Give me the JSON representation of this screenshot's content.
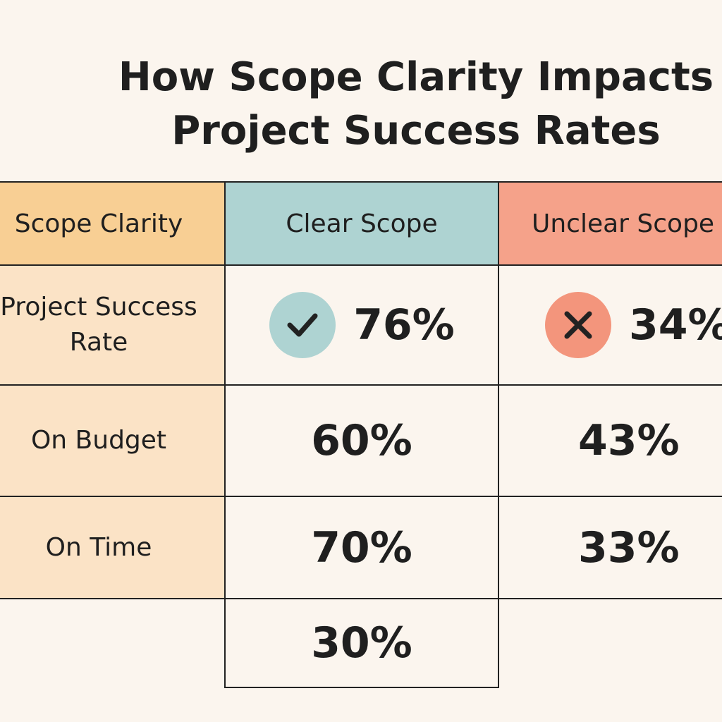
{
  "title": "How Scope Clarity Impacts Project Success Rates",
  "table": {
    "header": [
      "Scope Clarity",
      "Clear Scope",
      "Unclear Scope"
    ],
    "rows": [
      [
        "Project Success Rate",
        "76%",
        "34%"
      ],
      [
        "On Budget",
        "60%",
        "43%"
      ],
      [
        "On Time",
        "70%",
        "33%"
      ],
      [
        null,
        "30%",
        null
      ]
    ]
  }
}
